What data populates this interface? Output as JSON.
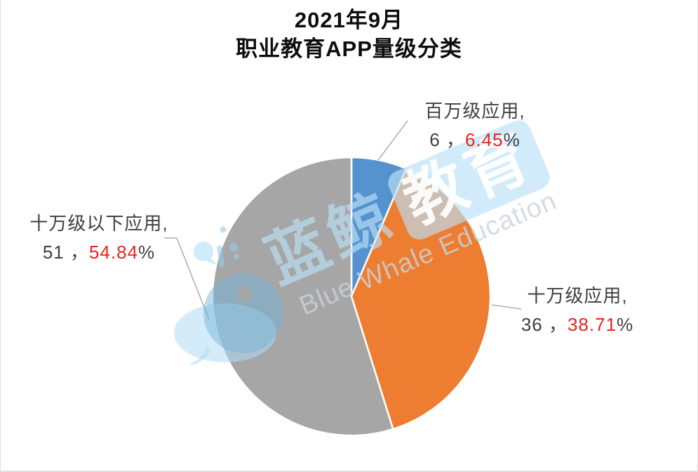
{
  "title": {
    "line1": "2021年9月",
    "line2": "职业教育APP量级分类"
  },
  "chart_data": {
    "type": "pie",
    "title": "2021年9月 职业教育APP量级分类",
    "start_angle": "12-oclock",
    "direction": "clockwise",
    "total": 93,
    "slices": [
      {
        "label": "百万级应用",
        "value": 6,
        "percent": 6.45,
        "color": "#5693CE"
      },
      {
        "label": "十万级应用",
        "value": 36,
        "percent": 38.71,
        "color": "#ED7D31"
      },
      {
        "label": "十万级以下应用",
        "value": 51,
        "percent": 54.84,
        "color": "#A6A6A6"
      }
    ],
    "legend": "none",
    "data_labels": "outside with leader lines, format: 名称, 数量 ， 百分比%"
  },
  "labels": {
    "million": {
      "line1": "百万级应用,",
      "count": "6 ，",
      "pct": "6.45",
      "suffix": "%"
    },
    "hundredk": {
      "line1": "十万级应用,",
      "count": "36 ，",
      "pct": "38.71",
      "suffix": "%"
    },
    "hundredk_below": {
      "line1": "十万级以下应用,",
      "count": "51 ，",
      "pct": "54.84",
      "suffix": "%"
    }
  },
  "watermark": {
    "cn_prefix": "蓝鲸",
    "cn_badge": "教育",
    "latin": "Blue Whale Education",
    "logo": "blue-whale-with-spout"
  },
  "colors": {
    "title_text": "#0D0D0D",
    "label_text": "#404040",
    "percent_red": "#E8251B",
    "slice_blue": "#5693CE",
    "slice_orange": "#ED7D31",
    "slice_gray": "#A6A6A6",
    "watermark_blue": "#BAE0F8",
    "leader_line": "#A0A0A0"
  }
}
